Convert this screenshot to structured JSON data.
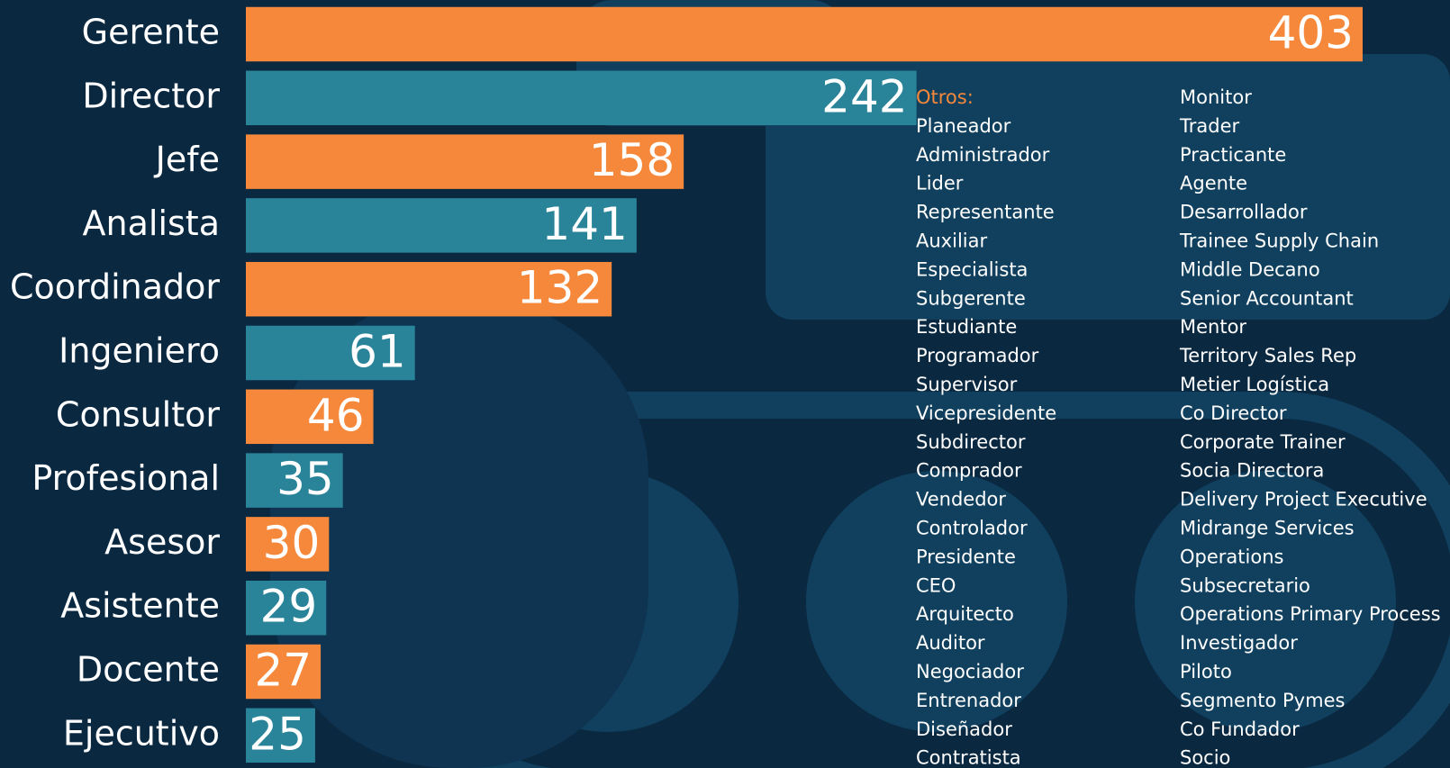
{
  "chart_data": {
    "type": "bar",
    "orientation": "horizontal",
    "categories": [
      "Gerente",
      "Director",
      "Jefe",
      "Analista",
      "Coordinador",
      "Ingeniero",
      "Consultor",
      "Profesional",
      "Asesor",
      "Asistente",
      "Docente",
      "Ejecutivo"
    ],
    "values": [
      403,
      242,
      158,
      141,
      132,
      61,
      46,
      35,
      30,
      29,
      27,
      25
    ],
    "colors": [
      "#f5883a",
      "#2a8499",
      "#f5883a",
      "#2a8499",
      "#f5883a",
      "#2a8499",
      "#f5883a",
      "#2a8499",
      "#f5883a",
      "#2a8499",
      "#f5883a",
      "#2a8499"
    ],
    "annotation": {
      "title": "Otros:",
      "columns": [
        [
          "Planeador",
          "Administrador",
          "Lider",
          "Representante",
          "Auxiliar",
          "Especialista",
          "Subgerente",
          "Estudiante",
          "Programador",
          "Supervisor",
          "Vicepresidente",
          "Subdirector",
          "Comprador",
          "Vendedor",
          "Controlador",
          "Presidente",
          "CEO",
          "Arquitecto",
          "Auditor",
          "Negociador",
          "Entrenador",
          "Diseñador",
          "Contratista"
        ],
        [
          "Monitor",
          "Trader",
          "Practicante",
          "Agente",
          "Desarrollador",
          "Trainee Supply Chain",
          "Middle Decano",
          "Senior Accountant",
          "Mentor",
          "Territory Sales Rep",
          "Metier Logística",
          "Co Director",
          "Corporate Trainer",
          "Socia Directora",
          "Delivery Project Executive",
          "Midrange Services",
          "Operations",
          "Subsecretario",
          "Operations Primary Process",
          "Investigador",
          "Piloto",
          "Segmento Pymes",
          "Co Fundador",
          "Socio"
        ]
      ]
    }
  }
}
